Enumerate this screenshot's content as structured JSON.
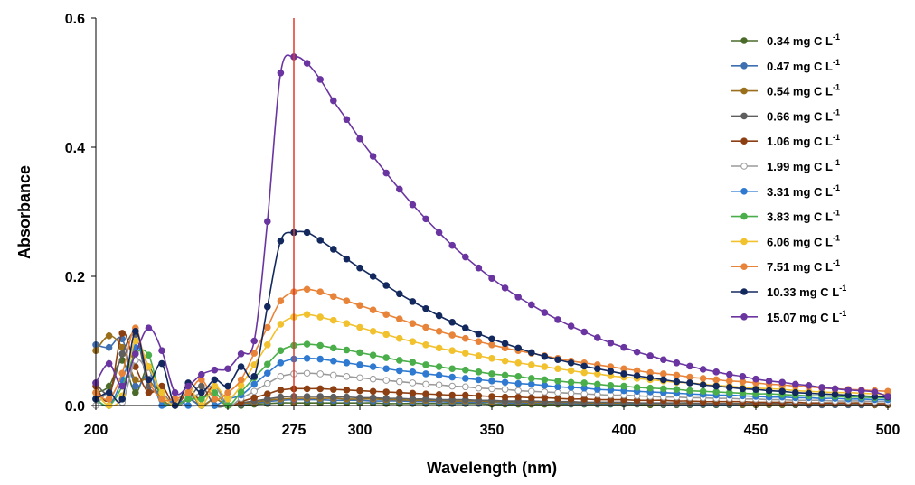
{
  "chart_data": {
    "type": "line",
    "title": "",
    "xlabel": "Wavelength (nm)",
    "ylabel": "Absorbance",
    "xlim": [
      200,
      500
    ],
    "ylim": [
      0,
      0.6
    ],
    "x_ticks": [
      200,
      250,
      275,
      300,
      350,
      400,
      450,
      500
    ],
    "x_tick_labels": [
      "200",
      "250",
      "275",
      "300",
      "350",
      "400",
      "450",
      "500"
    ],
    "highlight_tick": "275",
    "y_ticks": [
      0,
      0.2,
      0.4,
      0.6
    ],
    "y_tick_labels": [
      "0.0",
      "0.2",
      "0.4",
      "0.6"
    ],
    "reference_line": {
      "x": 275,
      "color": "#e03a2c"
    },
    "legend_position": "right",
    "grid": false,
    "x": [
      200,
      205,
      210,
      215,
      220,
      225,
      230,
      235,
      240,
      245,
      250,
      255,
      260,
      265,
      270,
      275,
      280,
      285,
      290,
      295,
      300,
      305,
      310,
      315,
      320,
      325,
      330,
      335,
      340,
      345,
      350,
      355,
      360,
      365,
      370,
      375,
      380,
      385,
      390,
      395,
      400,
      405,
      410,
      415,
      420,
      425,
      430,
      435,
      440,
      445,
      450,
      455,
      460,
      465,
      470,
      475,
      480,
      485,
      490,
      495,
      500
    ],
    "series": [
      {
        "name": "0.34 mg C L-1",
        "name_base": "0.34 mg C L",
        "name_sup": "-1",
        "color": "#4a6b2a",
        "fill": "#4a6b2a",
        "values": [
          0.02,
          0.03,
          0.07,
          0.02,
          0.06,
          0.01,
          0,
          0.01,
          0,
          0,
          0,
          0,
          0.002,
          0.003,
          0.004,
          0.004,
          0.004,
          0.004,
          0.004,
          0.004,
          0.004,
          0.004,
          0.003,
          0.003,
          0.003,
          0.003,
          0.003,
          0.003,
          0.003,
          0.003,
          0.002,
          0.002,
          0.002,
          0.002,
          0.002,
          0.002,
          0.002,
          0.002,
          0.002,
          0.002,
          0.002,
          0.002,
          0.001,
          0.001,
          0.001,
          0.001,
          0.001,
          0.001,
          0.001,
          0.001,
          0.001,
          0.001,
          0.001,
          0.001,
          0.001,
          0.001,
          0.001,
          0.001,
          0.001,
          0.001,
          0.001
        ]
      },
      {
        "name": "0.47 mg C L-1",
        "name_base": "0.47 mg C L",
        "name_sup": "-1",
        "color": "#3f6fb0",
        "fill": "#3f6fb0",
        "values": [
          0.094,
          0.09,
          0.103,
          0.03,
          0.05,
          0.02,
          0,
          0.01,
          0,
          0.01,
          0,
          0.002,
          0.004,
          0.006,
          0.008,
          0.009,
          0.009,
          0.009,
          0.008,
          0.008,
          0.008,
          0.007,
          0.007,
          0.007,
          0.006,
          0.006,
          0.006,
          0.005,
          0.005,
          0.005,
          0.005,
          0.004,
          0.004,
          0.004,
          0.004,
          0.004,
          0.003,
          0.003,
          0.003,
          0.003,
          0.003,
          0.003,
          0.003,
          0.002,
          0.002,
          0.002,
          0.002,
          0.002,
          0.002,
          0.002,
          0.002,
          0.002,
          0.002,
          0.002,
          0.001,
          0.001,
          0.001,
          0.001,
          0.001,
          0.001,
          0.001
        ]
      },
      {
        "name": "0.54 mg C L-1",
        "name_base": "0.54 mg C L",
        "name_sup": "-1",
        "color": "#9a6f1c",
        "fill": "#9a6f1c",
        "values": [
          0.085,
          0.108,
          0.09,
          0.04,
          0.04,
          0.01,
          0,
          0.02,
          0,
          0.01,
          0,
          0.003,
          0.005,
          0.008,
          0.01,
          0.011,
          0.011,
          0.011,
          0.011,
          0.01,
          0.01,
          0.01,
          0.009,
          0.009,
          0.008,
          0.008,
          0.008,
          0.007,
          0.007,
          0.007,
          0.006,
          0.006,
          0.006,
          0.005,
          0.005,
          0.005,
          0.005,
          0.004,
          0.004,
          0.004,
          0.004,
          0.004,
          0.003,
          0.003,
          0.003,
          0.003,
          0.003,
          0.003,
          0.003,
          0.002,
          0.002,
          0.002,
          0.002,
          0.002,
          0.002,
          0.002,
          0.002,
          0.002,
          0.002,
          0.001,
          0.001
        ]
      },
      {
        "name": "0.66 mg C L-1",
        "name_base": "0.66 mg C L",
        "name_sup": "-1",
        "color": "#5f5f5f",
        "fill": "#5f5f5f",
        "values": [
          0.035,
          0.02,
          0.08,
          0.11,
          0.03,
          0.02,
          0,
          0.01,
          0.03,
          0,
          0,
          0.004,
          0.007,
          0.01,
          0.013,
          0.014,
          0.014,
          0.014,
          0.013,
          0.013,
          0.012,
          0.012,
          0.011,
          0.011,
          0.01,
          0.01,
          0.009,
          0.009,
          0.009,
          0.008,
          0.008,
          0.007,
          0.007,
          0.007,
          0.006,
          0.006,
          0.006,
          0.005,
          0.005,
          0.005,
          0.005,
          0.004,
          0.004,
          0.004,
          0.004,
          0.004,
          0.003,
          0.003,
          0.003,
          0.003,
          0.003,
          0.003,
          0.003,
          0.002,
          0.002,
          0.002,
          0.002,
          0.002,
          0.002,
          0.002,
          0.002
        ]
      },
      {
        "name": "1.06 mg C L-1",
        "name_base": "1.06 mg C L",
        "name_sup": "-1",
        "color": "#8c3f12",
        "fill": "#8c3f12",
        "values": [
          0.03,
          0.01,
          0.112,
          0.06,
          0.02,
          0.03,
          0,
          0.02,
          0.01,
          0.03,
          0,
          0.006,
          0.012,
          0.018,
          0.024,
          0.026,
          0.026,
          0.026,
          0.025,
          0.024,
          0.023,
          0.022,
          0.021,
          0.02,
          0.019,
          0.018,
          0.017,
          0.016,
          0.016,
          0.015,
          0.014,
          0.013,
          0.013,
          0.012,
          0.012,
          0.011,
          0.01,
          0.01,
          0.009,
          0.009,
          0.009,
          0.008,
          0.008,
          0.008,
          0.007,
          0.007,
          0.006,
          0.006,
          0.006,
          0.006,
          0.005,
          0.005,
          0.005,
          0.005,
          0.004,
          0.004,
          0.004,
          0.004,
          0.004,
          0.003,
          0.003
        ]
      },
      {
        "name": "1.99 mg C L-1",
        "name_base": "1.99 mg C L",
        "name_sup": "-1",
        "color": "#9a9a9a",
        "fill": "#ffffff",
        "values": [
          0,
          0.02,
          0.005,
          0.07,
          0.05,
          0.02,
          0,
          0.01,
          0.02,
          0.03,
          0,
          0.011,
          0.022,
          0.034,
          0.045,
          0.049,
          0.05,
          0.049,
          0.047,
          0.045,
          0.043,
          0.041,
          0.039,
          0.037,
          0.035,
          0.033,
          0.032,
          0.03,
          0.029,
          0.027,
          0.026,
          0.025,
          0.023,
          0.022,
          0.021,
          0.02,
          0.019,
          0.018,
          0.017,
          0.016,
          0.016,
          0.015,
          0.014,
          0.013,
          0.013,
          0.012,
          0.012,
          0.011,
          0.011,
          0.01,
          0.01,
          0.009,
          0.009,
          0.008,
          0.008,
          0.008,
          0.007,
          0.007,
          0.007,
          0.006,
          0.006
        ]
      },
      {
        "name": "3.31 mg C L-1",
        "name_base": "3.31 mg C L",
        "name_sup": "-1",
        "color": "#2f7ad0",
        "fill": "#2f7ad0",
        "values": [
          0.01,
          0,
          0.04,
          0.09,
          0.06,
          0,
          0.01,
          0,
          0,
          0,
          0.01,
          0.016,
          0.033,
          0.05,
          0.066,
          0.072,
          0.073,
          0.072,
          0.069,
          0.066,
          0.063,
          0.06,
          0.057,
          0.054,
          0.052,
          0.049,
          0.047,
          0.044,
          0.042,
          0.04,
          0.038,
          0.036,
          0.034,
          0.033,
          0.031,
          0.029,
          0.028,
          0.027,
          0.025,
          0.024,
          0.023,
          0.022,
          0.021,
          0.02,
          0.019,
          0.018,
          0.017,
          0.016,
          0.016,
          0.015,
          0.014,
          0.013,
          0.013,
          0.012,
          0.012,
          0.011,
          0.011,
          0.01,
          0.01,
          0.009,
          0.009
        ]
      },
      {
        "name": "3.83 mg C L-1",
        "name_base": "3.83 mg C L",
        "name_sup": "-1",
        "color": "#4aae4a",
        "fill": "#4aae4a",
        "values": [
          0.01,
          0,
          0.03,
          0.08,
          0.078,
          0.01,
          0,
          0.01,
          0.01,
          0.02,
          0,
          0.021,
          0.043,
          0.064,
          0.085,
          0.093,
          0.095,
          0.093,
          0.089,
          0.086,
          0.082,
          0.078,
          0.074,
          0.07,
          0.067,
          0.063,
          0.06,
          0.057,
          0.055,
          0.052,
          0.049,
          0.047,
          0.045,
          0.042,
          0.04,
          0.038,
          0.036,
          0.035,
          0.033,
          0.031,
          0.03,
          0.028,
          0.027,
          0.026,
          0.025,
          0.023,
          0.022,
          0.021,
          0.02,
          0.019,
          0.018,
          0.018,
          0.017,
          0.016,
          0.015,
          0.015,
          0.014,
          0.013,
          0.013,
          0.012,
          0.012
        ]
      },
      {
        "name": "6.06 mg C L-1",
        "name_base": "6.06 mg C L",
        "name_sup": "-1",
        "color": "#f2c12e",
        "fill": "#f2c12e",
        "values": [
          0.02,
          0,
          0.015,
          0.1,
          0.06,
          0.02,
          0,
          0.03,
          0,
          0.03,
          0.01,
          0.031,
          0.063,
          0.094,
          0.126,
          0.137,
          0.141,
          0.137,
          0.132,
          0.127,
          0.121,
          0.115,
          0.11,
          0.104,
          0.099,
          0.094,
          0.089,
          0.085,
          0.081,
          0.077,
          0.073,
          0.069,
          0.066,
          0.063,
          0.06,
          0.057,
          0.054,
          0.051,
          0.049,
          0.046,
          0.044,
          0.042,
          0.04,
          0.038,
          0.036,
          0.035,
          0.033,
          0.031,
          0.03,
          0.028,
          0.027,
          0.026,
          0.025,
          0.023,
          0.022,
          0.021,
          0.02,
          0.02,
          0.019,
          0.018,
          0.017
        ]
      },
      {
        "name": "7.51 mg C L-1",
        "name_base": "7.51 mg C L",
        "name_sup": "-1",
        "color": "#e8843a",
        "fill": "#e8843a",
        "values": [
          0.02,
          0.01,
          0.05,
          0.12,
          0.04,
          0.01,
          0.01,
          0.02,
          0.04,
          0.01,
          0.02,
          0.04,
          0.081,
          0.121,
          0.162,
          0.176,
          0.18,
          0.176,
          0.169,
          0.162,
          0.155,
          0.148,
          0.141,
          0.134,
          0.127,
          0.121,
          0.115,
          0.109,
          0.104,
          0.099,
          0.094,
          0.089,
          0.085,
          0.081,
          0.077,
          0.073,
          0.069,
          0.066,
          0.063,
          0.06,
          0.057,
          0.054,
          0.051,
          0.049,
          0.047,
          0.044,
          0.042,
          0.04,
          0.038,
          0.037,
          0.035,
          0.033,
          0.032,
          0.03,
          0.029,
          0.027,
          0.026,
          0.025,
          0.024,
          0.023,
          0.022
        ]
      },
      {
        "name": "10.33 mg C L-1",
        "name_base": "10.33 mg C L",
        "name_sup": "-1",
        "color": "#13295e",
        "fill": "#13295e",
        "values": [
          0.01,
          0.02,
          0.01,
          0.115,
          0.04,
          0.065,
          0,
          0.035,
          0.02,
          0.04,
          0.03,
          0.06,
          0.045,
          0.153,
          0.255,
          0.268,
          0.268,
          0.256,
          0.242,
          0.227,
          0.213,
          0.2,
          0.186,
          0.173,
          0.161,
          0.15,
          0.139,
          0.129,
          0.12,
          0.111,
          0.103,
          0.096,
          0.089,
          0.082,
          0.076,
          0.071,
          0.066,
          0.061,
          0.057,
          0.053,
          0.049,
          0.046,
          0.043,
          0.04,
          0.037,
          0.035,
          0.032,
          0.03,
          0.028,
          0.026,
          0.025,
          0.023,
          0.022,
          0.02,
          0.019,
          0.018,
          0.017,
          0.016,
          0.015,
          0.014,
          0.013
        ]
      },
      {
        "name": "15.07 mg C L-1",
        "name_base": "15.07 mg C L",
        "name_sup": "-1",
        "color": "#6a35a0",
        "fill": "#6a35a0",
        "values": [
          0.035,
          0.065,
          0.03,
          0.08,
          0.12,
          0.085,
          0.02,
          0.03,
          0.048,
          0.055,
          0.057,
          0.08,
          0.1,
          0.285,
          0.515,
          0.54,
          0.53,
          0.505,
          0.472,
          0.443,
          0.413,
          0.386,
          0.36,
          0.335,
          0.311,
          0.289,
          0.268,
          0.248,
          0.23,
          0.213,
          0.197,
          0.182,
          0.168,
          0.156,
          0.144,
          0.133,
          0.123,
          0.114,
          0.105,
          0.097,
          0.09,
          0.083,
          0.077,
          0.071,
          0.066,
          0.061,
          0.056,
          0.052,
          0.048,
          0.045,
          0.041,
          0.038,
          0.036,
          0.033,
          0.031,
          0.028,
          0.026,
          0.024,
          0.023,
          0.021,
          0.014
        ]
      }
    ]
  }
}
